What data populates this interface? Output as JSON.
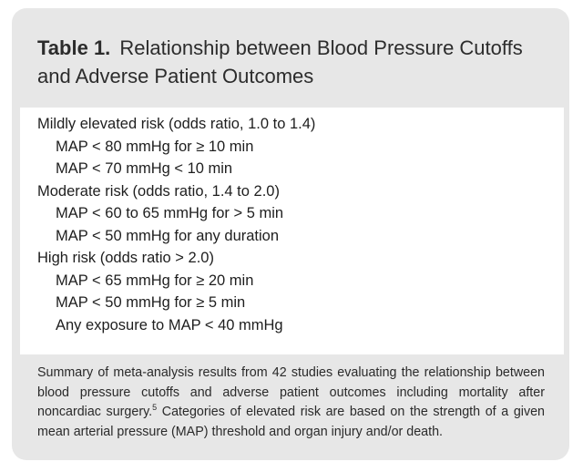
{
  "table": {
    "number": "Table 1.",
    "title": "Relationship between Blood Pressure Cutoffs and Adverse Patient Outcomes"
  },
  "rows": [
    {
      "kind": "category",
      "text": "Mildly elevated risk (odds ratio, 1.0 to 1.4)"
    },
    {
      "kind": "item",
      "text": "MAP < 80 mmHg for ≥ 10 min"
    },
    {
      "kind": "item",
      "text": "MAP < 70 mmHg < 10 min"
    },
    {
      "kind": "category",
      "text": "Moderate risk (odds ratio, 1.4 to 2.0)"
    },
    {
      "kind": "item",
      "text": "MAP < 60 to 65 mmHg for > 5 min"
    },
    {
      "kind": "item",
      "text": "MAP < 50 mmHg for any duration"
    },
    {
      "kind": "category",
      "text": "High risk (odds ratio > 2.0)"
    },
    {
      "kind": "item",
      "text": "MAP < 65 mmHg for ≥ 20 min"
    },
    {
      "kind": "item",
      "text": "MAP < 50 mmHg for ≥ 5 min"
    },
    {
      "kind": "item",
      "text": "Any exposure to MAP < 40 mmHg"
    }
  ],
  "summary": {
    "before_ref": "Summary of meta-analysis results from 42 studies evaluating the relationship between blood pressure cutoffs and adverse patient outcomes including mortality after noncardiac surgery.",
    "ref": "5",
    "after_ref": " Categories of elevated risk are based on the strength of a given mean arterial pressure (MAP) threshold and organ injury and/or death."
  },
  "colors": {
    "card_background": "#e7e7e7",
    "content_background": "#ffffff",
    "text": "#222222"
  }
}
